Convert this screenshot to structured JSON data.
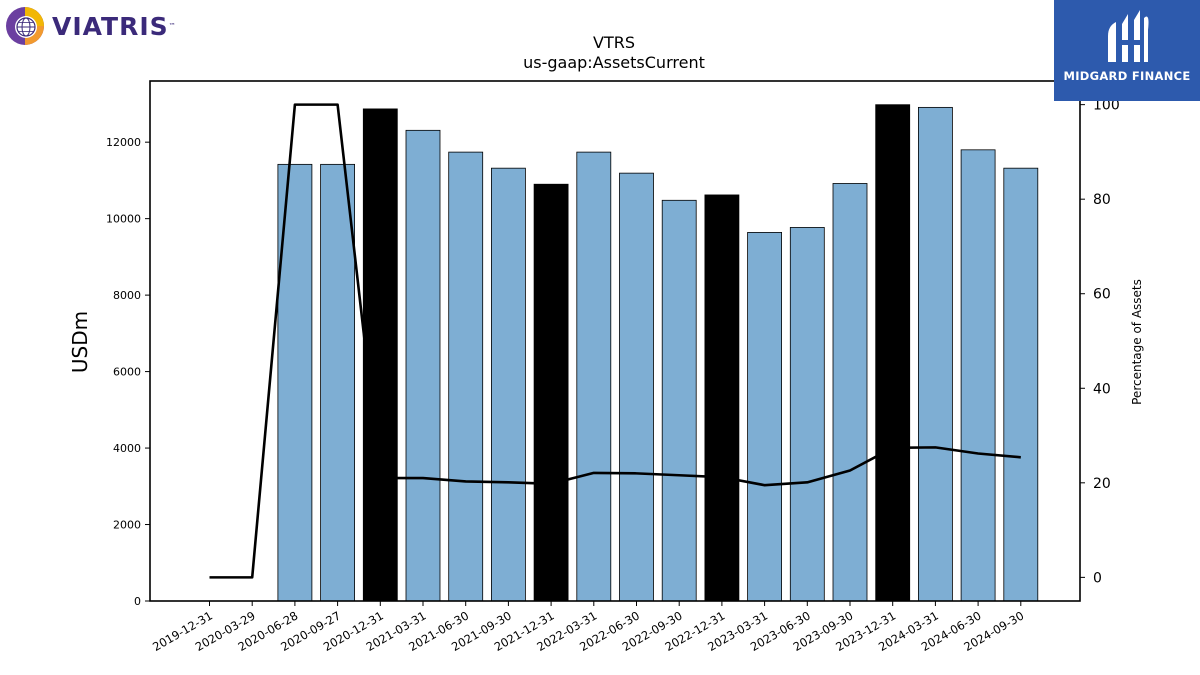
{
  "logos": {
    "company": "VIATRIS",
    "company_tm": "™",
    "publisher": "MIDGARD FINANCE"
  },
  "chart_data": {
    "type": "bar",
    "title": "VTRS",
    "subtitle": "us-gaap:AssetsCurrent",
    "ylabel": "USDm",
    "y2label": "Percentage of Assets",
    "ylim": [
      0,
      13600
    ],
    "y2lim": [
      -5,
      105
    ],
    "yticks": [
      0,
      2000,
      4000,
      6000,
      8000,
      10000,
      12000
    ],
    "y2ticks": [
      0,
      20,
      40,
      60,
      80,
      100
    ],
    "categories": [
      "2019-12-31",
      "2020-03-29",
      "2020-06-28",
      "2020-09-27",
      "2020-12-31",
      "2021-03-31",
      "2021-06-30",
      "2021-09-30",
      "2021-12-31",
      "2022-03-31",
      "2022-06-30",
      "2022-09-30",
      "2022-12-31",
      "2023-03-31",
      "2023-06-30",
      "2023-09-30",
      "2023-12-31",
      "2024-03-31",
      "2024-06-30",
      "2024-09-30"
    ],
    "series": [
      {
        "values": [
          null,
          null,
          11420,
          11420,
          12870,
          12310,
          11740,
          11320,
          10900,
          11740,
          11190,
          10480,
          10620,
          9640,
          9770,
          10920,
          12980,
          12910,
          11800,
          11320
        ],
        "highlight": [
          false,
          false,
          false,
          false,
          true,
          false,
          false,
          false,
          true,
          false,
          false,
          false,
          true,
          false,
          false,
          false,
          true,
          false,
          false,
          false
        ],
        "axis": "left"
      },
      {
        "values": [
          0,
          0,
          100,
          100,
          21,
          21,
          20.3,
          20.1,
          19.8,
          22.1,
          22,
          21.6,
          21.2,
          19.5,
          20.1,
          22.6,
          27.4,
          27.5,
          26.2,
          25.4
        ],
        "axis": "right"
      }
    ],
    "colors": {
      "bar": "#7eaed3",
      "highlight": "#000000",
      "line": "#000000",
      "edge": "#000000"
    },
    "grid": false,
    "legend": "none"
  }
}
